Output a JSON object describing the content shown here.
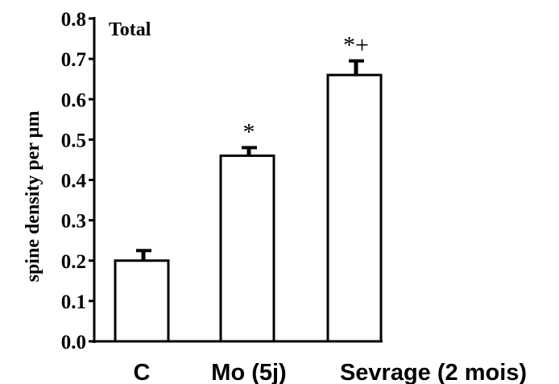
{
  "chart_data": {
    "type": "bar",
    "title": "Total",
    "ylabel": "spine density per µm",
    "xlabel": "",
    "categories": [
      "C",
      "Mo (5j)",
      "Sevrage (2 mois)"
    ],
    "values": [
      0.2,
      0.46,
      0.66
    ],
    "errors": [
      0.025,
      0.02,
      0.035
    ],
    "annotations": [
      "",
      "*",
      "*+"
    ],
    "ylim": [
      0.0,
      0.8
    ],
    "yticks": [
      "0.0",
      "0.1",
      "0.2",
      "0.3",
      "0.4",
      "0.5",
      "0.6",
      "0.7",
      "0.8"
    ],
    "bar_fill": "#ffffff",
    "bar_stroke": "#000000",
    "grid": false,
    "legend": "none"
  }
}
